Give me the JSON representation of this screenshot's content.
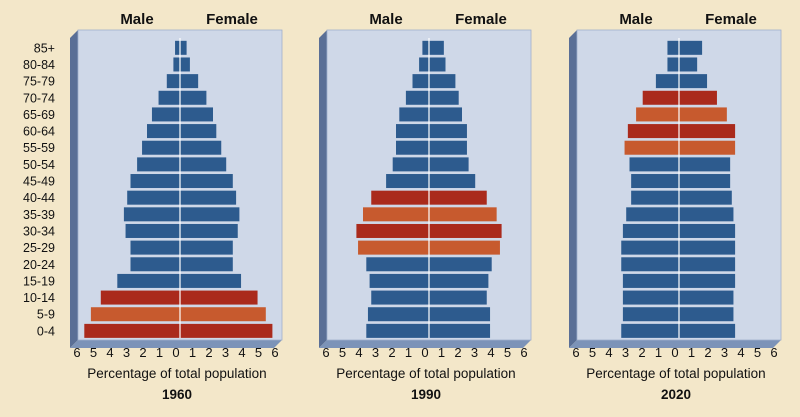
{
  "chart_data": {
    "type": "bar",
    "subtype": "population-pyramid",
    "categories": [
      "85+",
      "80-84",
      "75-79",
      "70-74",
      "65-69",
      "60-64",
      "55-59",
      "50-54",
      "45-49",
      "40-44",
      "35-39",
      "30-34",
      "25-29",
      "20-24",
      "15-19",
      "10-14",
      "5-9",
      "0-4"
    ],
    "male_label": "Male",
    "female_label": "Female",
    "xlabel": "Percentage of total population",
    "xlim": [
      -6,
      6
    ],
    "x_ticks": [
      "6",
      "5",
      "4",
      "3",
      "2",
      "1",
      "0",
      "1",
      "2",
      "3",
      "4",
      "5",
      "6"
    ],
    "colors": {
      "blue": "#2d5b8e",
      "orange": "#c75a2e",
      "red": "#aa2a1c",
      "frame": "#7c93b8",
      "frame_shadow": "#5a6f96",
      "plot_bg": "#cfd8e8"
    },
    "panels": [
      {
        "year": "1960",
        "male": [
          0.3,
          0.4,
          0.8,
          1.3,
          1.7,
          2.0,
          2.3,
          2.6,
          3.0,
          3.2,
          3.4,
          3.3,
          3.0,
          3.0,
          3.8,
          4.8,
          5.4,
          5.8
        ],
        "female": [
          0.4,
          0.6,
          1.1,
          1.6,
          2.0,
          2.2,
          2.5,
          2.8,
          3.2,
          3.4,
          3.6,
          3.5,
          3.2,
          3.2,
          3.7,
          4.7,
          5.2,
          5.6
        ],
        "highlight": [
          null,
          null,
          null,
          null,
          null,
          null,
          null,
          null,
          null,
          null,
          null,
          null,
          null,
          null,
          null,
          "red",
          "orange",
          "red"
        ]
      },
      {
        "year": "1990",
        "male": [
          0.4,
          0.6,
          1.0,
          1.4,
          1.8,
          2.0,
          2.0,
          2.2,
          2.6,
          3.5,
          4.0,
          4.4,
          4.3,
          3.8,
          3.6,
          3.5,
          3.7,
          3.8
        ],
        "female": [
          0.9,
          1.0,
          1.6,
          1.8,
          2.0,
          2.3,
          2.3,
          2.4,
          2.8,
          3.5,
          4.1,
          4.4,
          4.3,
          3.8,
          3.6,
          3.5,
          3.7,
          3.7
        ],
        "highlight": [
          null,
          null,
          null,
          null,
          null,
          null,
          null,
          null,
          null,
          "red",
          "orange",
          "red",
          "orange",
          null,
          null,
          null,
          null,
          null
        ]
      },
      {
        "year": "2020",
        "male": [
          0.7,
          0.7,
          1.4,
          2.2,
          2.6,
          3.1,
          3.3,
          3.0,
          2.9,
          2.9,
          3.2,
          3.4,
          3.5,
          3.5,
          3.4,
          3.4,
          3.4,
          3.5
        ],
        "female": [
          1.4,
          1.1,
          1.7,
          2.3,
          2.9,
          3.4,
          3.4,
          3.1,
          3.1,
          3.2,
          3.3,
          3.4,
          3.4,
          3.4,
          3.4,
          3.3,
          3.3,
          3.4
        ],
        "highlight": [
          null,
          null,
          null,
          "red",
          "orange",
          "red",
          "orange",
          null,
          null,
          null,
          null,
          null,
          null,
          null,
          null,
          null,
          null,
          null
        ]
      }
    ]
  }
}
